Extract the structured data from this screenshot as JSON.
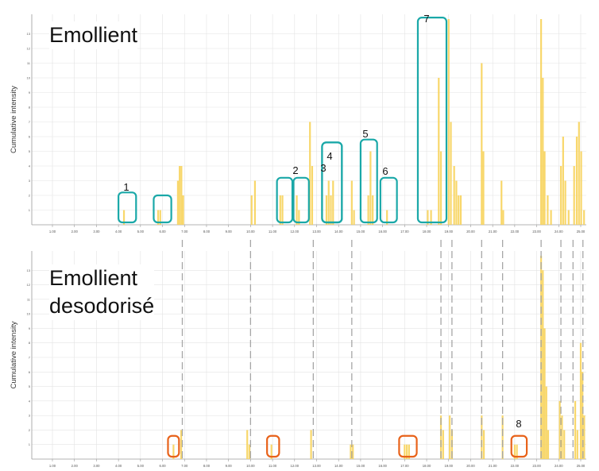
{
  "figure": {
    "panels": [
      {
        "id": "top",
        "title_lines": [
          "Emollient"
        ],
        "ylabel": "Cumulative intensity"
      },
      {
        "id": "bottom",
        "title_lines": [
          "Emollient",
          "desodorisé"
        ],
        "ylabel": "Cumulative intensity"
      }
    ],
    "x_ticks": [
      "1.00",
      "2.00",
      "3.00",
      "4.00",
      "5.00",
      "6.00",
      "7.00",
      "8.00",
      "9.00",
      "10.00",
      "11.00",
      "12.00",
      "13.00",
      "14.00",
      "15.00",
      "16.00",
      "17.00",
      "18.00",
      "19.00",
      "20.00",
      "21.00",
      "22.00",
      "23.00",
      "24.00",
      "25.00"
    ],
    "y_ticks": [
      "1",
      "2",
      "3",
      "4",
      "5",
      "6",
      "7",
      "8",
      "9",
      "10",
      "11",
      "12",
      "13"
    ],
    "colors": {
      "bars": "#f7d35b",
      "teal_box": "#1aa8a8",
      "orange_box": "#e8621a",
      "guide": "#a6a6a6",
      "grid": "#e3e3e3"
    }
  },
  "chart_data": [
    {
      "type": "bar",
      "title": "Emollient",
      "ylabel": "Cumulative intensity",
      "xlim": [
        0.7,
        25.3
      ],
      "ylim": [
        0,
        14
      ],
      "bars": [
        {
          "x": 4.25,
          "y": 1
        },
        {
          "x": 5.8,
          "y": 1
        },
        {
          "x": 5.9,
          "y": 1
        },
        {
          "x": 6.7,
          "y": 3
        },
        {
          "x": 6.78,
          "y": 4
        },
        {
          "x": 6.86,
          "y": 4
        },
        {
          "x": 6.94,
          "y": 2
        },
        {
          "x": 10.05,
          "y": 2
        },
        {
          "x": 10.2,
          "y": 3
        },
        {
          "x": 11.35,
          "y": 2
        },
        {
          "x": 11.45,
          "y": 2
        },
        {
          "x": 12.1,
          "y": 2
        },
        {
          "x": 12.2,
          "y": 1
        },
        {
          "x": 12.7,
          "y": 7
        },
        {
          "x": 12.8,
          "y": 4
        },
        {
          "x": 13.45,
          "y": 2
        },
        {
          "x": 13.55,
          "y": 3
        },
        {
          "x": 13.65,
          "y": 2
        },
        {
          "x": 13.75,
          "y": 3
        },
        {
          "x": 14.6,
          "y": 3
        },
        {
          "x": 14.7,
          "y": 1
        },
        {
          "x": 15.35,
          "y": 2
        },
        {
          "x": 15.45,
          "y": 5
        },
        {
          "x": 15.55,
          "y": 2
        },
        {
          "x": 16.2,
          "y": 1
        },
        {
          "x": 18.05,
          "y": 1
        },
        {
          "x": 18.2,
          "y": 1
        },
        {
          "x": 18.55,
          "y": 10
        },
        {
          "x": 18.65,
          "y": 5
        },
        {
          "x": 19.0,
          "y": 14
        },
        {
          "x": 19.1,
          "y": 7
        },
        {
          "x": 19.25,
          "y": 4
        },
        {
          "x": 19.35,
          "y": 3
        },
        {
          "x": 19.45,
          "y": 2
        },
        {
          "x": 19.55,
          "y": 2
        },
        {
          "x": 20.5,
          "y": 11
        },
        {
          "x": 20.58,
          "y": 5
        },
        {
          "x": 21.4,
          "y": 3
        },
        {
          "x": 21.48,
          "y": 1
        },
        {
          "x": 23.2,
          "y": 14
        },
        {
          "x": 23.28,
          "y": 10
        },
        {
          "x": 23.36,
          "y": 5
        },
        {
          "x": 23.5,
          "y": 2
        },
        {
          "x": 23.65,
          "y": 1
        },
        {
          "x": 24.1,
          "y": 4
        },
        {
          "x": 24.2,
          "y": 6
        },
        {
          "x": 24.3,
          "y": 3
        },
        {
          "x": 24.45,
          "y": 1
        },
        {
          "x": 24.7,
          "y": 4
        },
        {
          "x": 24.82,
          "y": 6
        },
        {
          "x": 24.92,
          "y": 7
        },
        {
          "x": 25.02,
          "y": 5
        },
        {
          "x": 25.15,
          "y": 1
        }
      ],
      "annotations": [
        {
          "label": "1",
          "x_range": [
            4.0,
            4.8
          ],
          "y_top": 2.2
        },
        {
          "label": "",
          "x_range": [
            5.6,
            6.4
          ],
          "y_top": 2.0
        },
        {
          "label": "2",
          "x_range": [
            11.2,
            11.9
          ],
          "y_top": 3.2
        },
        {
          "label": "",
          "x_range": [
            11.95,
            12.65
          ],
          "y_top": 3.2
        },
        {
          "label": "3",
          "x_range": [
            13.25,
            14.15
          ],
          "y_top": 5.6
        },
        {
          "label": "4",
          "x_range": [
            13.25,
            14.15
          ],
          "y_top": 5.6
        },
        {
          "label": "5",
          "x_range": [
            15.0,
            15.75
          ],
          "y_top": 5.8
        },
        {
          "label": "6",
          "x_range": [
            15.9,
            16.65
          ],
          "y_top": 3.2
        },
        {
          "label": "7",
          "x_range": [
            17.6,
            18.9
          ],
          "y_top": 14.1
        }
      ]
    },
    {
      "type": "bar",
      "title": "Emollient desodorisé",
      "ylabel": "Cumulative intensity",
      "xlim": [
        0.7,
        25.3
      ],
      "ylim": [
        0,
        14
      ],
      "bars": [
        {
          "x": 6.5,
          "y": 1
        },
        {
          "x": 6.85,
          "y": 2
        },
        {
          "x": 9.85,
          "y": 2
        },
        {
          "x": 9.95,
          "y": 1
        },
        {
          "x": 10.95,
          "y": 1
        },
        {
          "x": 12.75,
          "y": 2
        },
        {
          "x": 14.55,
          "y": 1
        },
        {
          "x": 14.65,
          "y": 1
        },
        {
          "x": 17.0,
          "y": 1
        },
        {
          "x": 17.1,
          "y": 1
        },
        {
          "x": 17.2,
          "y": 1
        },
        {
          "x": 18.65,
          "y": 3
        },
        {
          "x": 18.75,
          "y": 2
        },
        {
          "x": 19.05,
          "y": 3
        },
        {
          "x": 19.15,
          "y": 2
        },
        {
          "x": 20.5,
          "y": 3
        },
        {
          "x": 20.6,
          "y": 2
        },
        {
          "x": 21.45,
          "y": 3
        },
        {
          "x": 22.0,
          "y": 1
        },
        {
          "x": 22.1,
          "y": 1
        },
        {
          "x": 23.2,
          "y": 14
        },
        {
          "x": 23.28,
          "y": 13
        },
        {
          "x": 23.36,
          "y": 9
        },
        {
          "x": 23.44,
          "y": 5
        },
        {
          "x": 23.52,
          "y": 2
        },
        {
          "x": 24.05,
          "y": 4
        },
        {
          "x": 24.15,
          "y": 3
        },
        {
          "x": 24.25,
          "y": 2
        },
        {
          "x": 24.75,
          "y": 4
        },
        {
          "x": 24.85,
          "y": 2
        },
        {
          "x": 25.0,
          "y": 8
        },
        {
          "x": 25.08,
          "y": 6
        },
        {
          "x": 25.16,
          "y": 3
        }
      ],
      "annotations": [
        {
          "label": "",
          "x_range": [
            6.25,
            6.75
          ],
          "y_top": 1.6
        },
        {
          "label": "",
          "x_range": [
            10.75,
            11.3
          ],
          "y_top": 1.6
        },
        {
          "label": "",
          "x_range": [
            16.75,
            17.55
          ],
          "y_top": 1.6
        },
        {
          "label": "8",
          "x_range": [
            21.85,
            22.55
          ],
          "y_top": 1.6
        }
      ],
      "guide_lines_x": [
        6.9,
        10.0,
        12.85,
        14.6,
        18.65,
        19.15,
        20.5,
        21.45,
        23.2,
        24.1,
        24.65,
        25.1
      ]
    }
  ]
}
